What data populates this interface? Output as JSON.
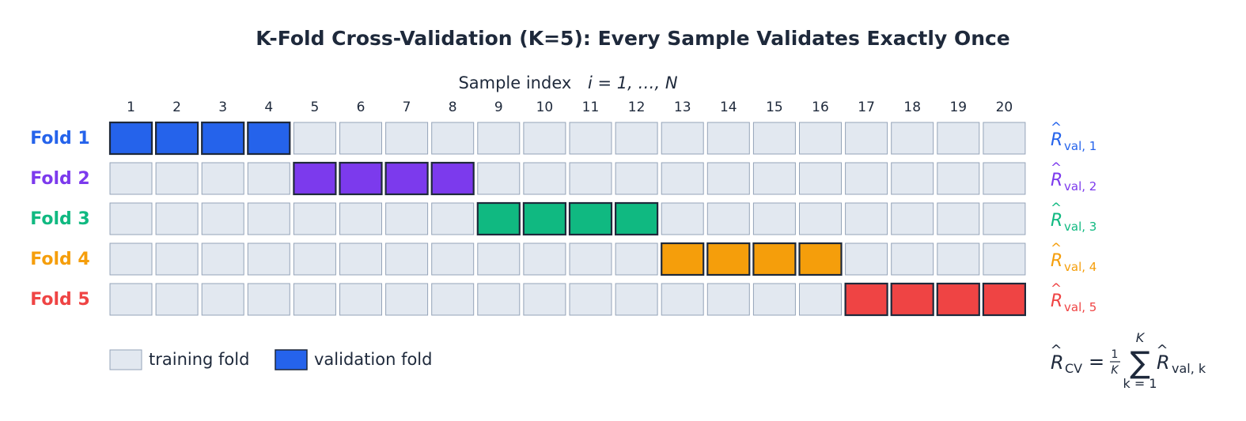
{
  "title": "K-Fold Cross-Validation (K=5):  Every Sample Validates Exactly Once",
  "axis": {
    "label_text": "Sample index",
    "label_math": "i = 1, …, N"
  },
  "sample_indices": [
    "1",
    "2",
    "3",
    "4",
    "5",
    "6",
    "7",
    "8",
    "9",
    "10",
    "11",
    "12",
    "13",
    "14",
    "15",
    "16",
    "17",
    "18",
    "19",
    "20"
  ],
  "folds": [
    {
      "label": "Fold 1",
      "color": "#2563eb",
      "validation": [
        1,
        4
      ],
      "risk_sub": "val, 1"
    },
    {
      "label": "Fold 2",
      "color": "#7c3aed",
      "validation": [
        5,
        8
      ],
      "risk_sub": "val, 2"
    },
    {
      "label": "Fold 3",
      "color": "#10b981",
      "validation": [
        9,
        12
      ],
      "risk_sub": "val, 3"
    },
    {
      "label": "Fold 4",
      "color": "#f59e0b",
      "validation": [
        13,
        16
      ],
      "risk_sub": "val, 4"
    },
    {
      "label": "Fold 5",
      "color": "#ef4444",
      "validation": [
        17,
        20
      ],
      "risk_sub": "val, 5"
    }
  ],
  "colors": {
    "training_fill": "#e2e8f0",
    "training_stroke": "#94a3b8",
    "validation_stroke": "#1e293b",
    "text": "#1e293b"
  },
  "risk_symbol": "R",
  "legend": {
    "training_label": "training fold",
    "validation_label": "validation fold",
    "validation_color": "#2563eb"
  },
  "formula": {
    "lhs_sub": "CV",
    "equals": "=",
    "frac_num": "1",
    "frac_den": "K",
    "sum_symbol": "∑",
    "sum_upper": "K",
    "sum_lower": "k = 1",
    "term_sub": "val, k"
  }
}
